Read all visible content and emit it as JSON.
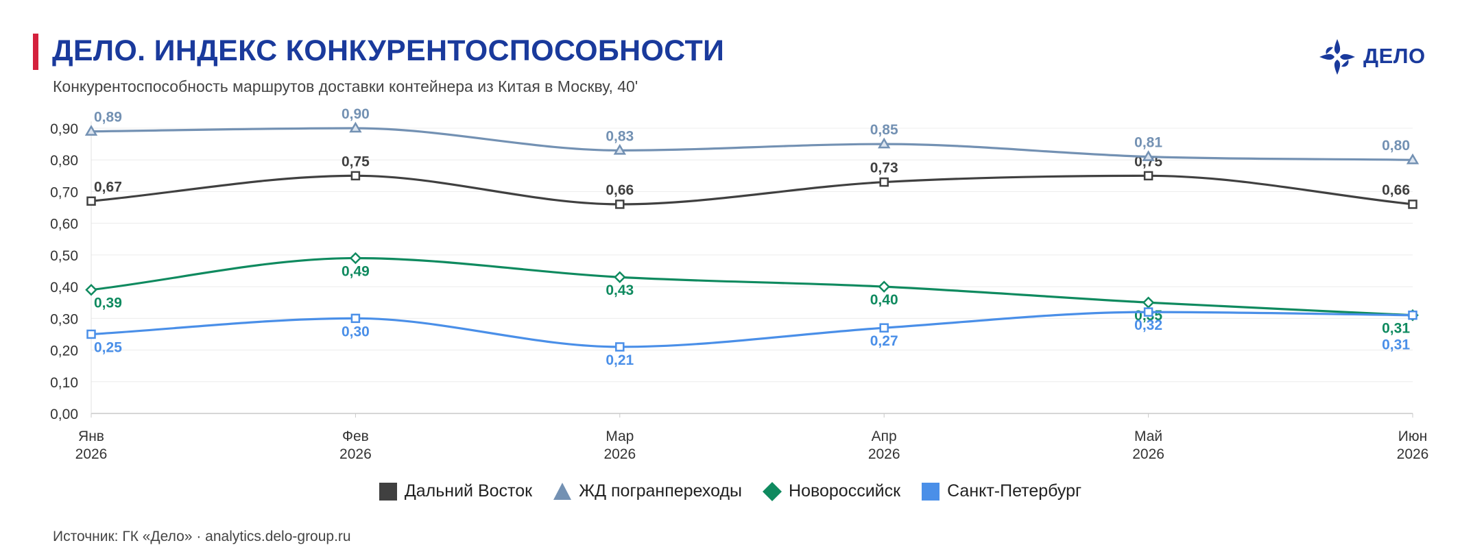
{
  "header": {
    "title": "ДЕЛО. ИНДЕКС КОНКУРЕНТОСПОСОБНОСТИ",
    "subtitle": "Конкурентоспособность маршрутов доставки контейнера из Китая в Москву, 40'",
    "logo_text": "ДЕЛО",
    "brand_color": "#1a3a9c",
    "accent_color": "#d4213d"
  },
  "footer": {
    "source": "Источник: ГК «Дело» · analytics.delo-group.ru"
  },
  "chart_data": {
    "type": "line",
    "categories": [
      [
        "Янв",
        "2026"
      ],
      [
        "Фев",
        "2026"
      ],
      [
        "Мар",
        "2026"
      ],
      [
        "Апр",
        "2026"
      ],
      [
        "Май",
        "2026"
      ],
      [
        "Июн",
        "2026"
      ]
    ],
    "ylim": [
      0,
      0.9
    ],
    "yticks": [
      "0,00",
      "0,10",
      "0,20",
      "0,30",
      "0,40",
      "0,50",
      "0,60",
      "0,70",
      "0,80",
      "0,90"
    ],
    "grid": true,
    "legend_position": "bottom",
    "series": [
      {
        "name": "Дальний Восток",
        "marker": "square",
        "color": "#404040",
        "values": [
          0.67,
          0.75,
          0.66,
          0.73,
          0.75,
          0.66
        ],
        "labels": [
          "0,67",
          "0,75",
          "0,66",
          "0,73",
          "0,75",
          "0,66"
        ],
        "label_side": [
          "above",
          "above",
          "above",
          "above",
          "above",
          "above"
        ]
      },
      {
        "name": "ЖД погранпереходы",
        "marker": "triangle",
        "color": "#7391b3",
        "values": [
          0.89,
          0.9,
          0.83,
          0.85,
          0.81,
          0.8
        ],
        "labels": [
          "0,89",
          "0,90",
          "0,83",
          "0,85",
          "0,81",
          "0,80"
        ],
        "label_side": [
          "above",
          "above",
          "above",
          "above",
          "above",
          "above"
        ]
      },
      {
        "name": "Новороссийск",
        "marker": "diamond",
        "color": "#0f8a5f",
        "values": [
          0.39,
          0.49,
          0.43,
          0.4,
          0.35,
          0.31
        ],
        "labels": [
          "0,39",
          "0,49",
          "0,43",
          "0,40",
          "0,35",
          "0,31"
        ],
        "label_side": [
          "below",
          "below",
          "below",
          "below",
          "below",
          "below"
        ]
      },
      {
        "name": "Санкт-Петербург",
        "marker": "square",
        "color": "#4a8fe8",
        "values": [
          0.25,
          0.3,
          0.21,
          0.27,
          0.32,
          0.31
        ],
        "labels": [
          "0,25",
          "0,30",
          "0,21",
          "0,27",
          "0,32",
          "0,31"
        ],
        "label_side": [
          "below",
          "below",
          "below",
          "below",
          "below",
          "below2"
        ]
      }
    ]
  }
}
